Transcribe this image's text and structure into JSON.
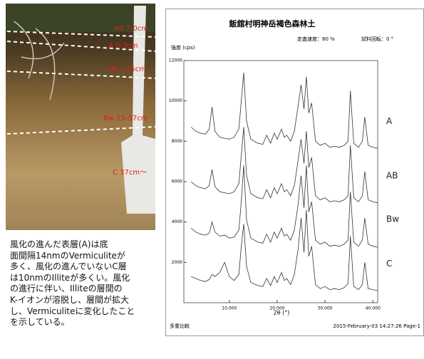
{
  "photo": {
    "horizons": [
      "A0 7-0cm",
      "A 0-3cm",
      "AB 3-15cm",
      "Bw 15-37cm",
      "C 37cm～"
    ]
  },
  "caption": {
    "lines": [
      "風化の進んだ表層(A)は底",
      "面間隔14nmのVermiculiteが",
      "多く、風化の進んでいないC層",
      "は10nmのIlliteが多くい。風化",
      "の進行に伴い、Illiteの層間の",
      "K-イオンが溶脱し、層間が拡大",
      "し、Vermiculiteに変化したこと",
      "を示している。"
    ]
  },
  "chart_data": {
    "type": "line",
    "title": "飯舘村明神岳褐色森林土",
    "header_notes": [
      "走査速度：80 %",
      "試料回転：0 °"
    ],
    "y_label": "強度 (cps)",
    "x_label": "2θ (°)",
    "footer_left": "多重比較",
    "footer_right": "2015-February-03 14:27:26 Page-1",
    "x": [
      2,
      3,
      4,
      5,
      5.8,
      6.4,
      7,
      8,
      9,
      10,
      11,
      12,
      12.5,
      13,
      13.6,
      14.5,
      16,
      17,
      17.8,
      18.6,
      19.4,
      20,
      20.9,
      21.5,
      22,
      22.8,
      23.6,
      24.4,
      25,
      25.6,
      26.1,
      26.6,
      27.2,
      28,
      29,
      30,
      31,
      32,
      33,
      34,
      34.8,
      35.3,
      36,
      37,
      37.8,
      38.3,
      39,
      40,
      41
    ],
    "series": [
      {
        "name": "A",
        "color": "#333333",
        "values": [
          8700,
          8500,
          8400,
          8350,
          8600,
          9700,
          8500,
          8200,
          8150,
          8100,
          8200,
          8600,
          10000,
          11400,
          9000,
          8100,
          7900,
          7850,
          8300,
          7900,
          8400,
          8100,
          8600,
          8200,
          8300,
          8000,
          8500,
          9800,
          10800,
          9600,
          11200,
          9400,
          9900,
          8000,
          7800,
          7900,
          7700,
          7750,
          7700,
          7800,
          8000,
          10500,
          7900,
          7700,
          8000,
          9200,
          7800,
          7700,
          7650
        ]
      },
      {
        "name": "AB",
        "color": "#333333",
        "values": [
          6000,
          5800,
          5700,
          5650,
          5800,
          6600,
          5750,
          5500,
          5450,
          5400,
          5500,
          5900,
          7300,
          8700,
          6300,
          5400,
          5200,
          5150,
          5600,
          5200,
          5700,
          5400,
          5900,
          5500,
          5600,
          5300,
          5800,
          7100,
          8100,
          6900,
          8500,
          6700,
          7200,
          5300,
          5100,
          5200,
          5000,
          5050,
          5000,
          5100,
          5300,
          7800,
          5200,
          5000,
          5300,
          6500,
          5100,
          5000,
          4950
        ]
      },
      {
        "name": "Bw",
        "color": "#333333",
        "values": [
          3700,
          3500,
          3400,
          3350,
          3450,
          4000,
          3500,
          3300,
          3350,
          3200,
          3250,
          3600,
          5000,
          6800,
          4100,
          3200,
          3000,
          2950,
          3400,
          3000,
          3500,
          3200,
          3700,
          3300,
          3400,
          3100,
          3600,
          4900,
          6300,
          4700,
          6800,
          4500,
          5000,
          3100,
          2900,
          3000,
          2800,
          2850,
          2800,
          2900,
          3100,
          5500,
          3000,
          2800,
          3100,
          4200,
          2900,
          2800,
          2750
        ]
      },
      {
        "name": "C",
        "color": "#333333",
        "values": [
          1300,
          1200,
          1100,
          1050,
          1150,
          1400,
          1300,
          1500,
          2000,
          1300,
          1100,
          1400,
          2800,
          3900,
          1800,
          1000,
          850,
          800,
          1200,
          850,
          1300,
          1000,
          1500,
          1100,
          1200,
          900,
          1400,
          2700,
          4200,
          2500,
          4600,
          2300,
          2800,
          900,
          700,
          800,
          650,
          700,
          650,
          750,
          950,
          3300,
          800,
          650,
          900,
          2000,
          700,
          650,
          600
        ]
      }
    ],
    "xlim": [
      0.5,
      41
    ],
    "ylim": [
      0,
      12000
    ],
    "xticks": [
      {
        "value": 10,
        "label": "10.000"
      },
      {
        "value": 20,
        "label": "20.000"
      },
      {
        "value": 30,
        "label": "30.000"
      },
      {
        "value": 40,
        "label": "40.000"
      }
    ],
    "yticks": [
      2000,
      4000,
      6000,
      8000,
      10000,
      12000
    ]
  }
}
